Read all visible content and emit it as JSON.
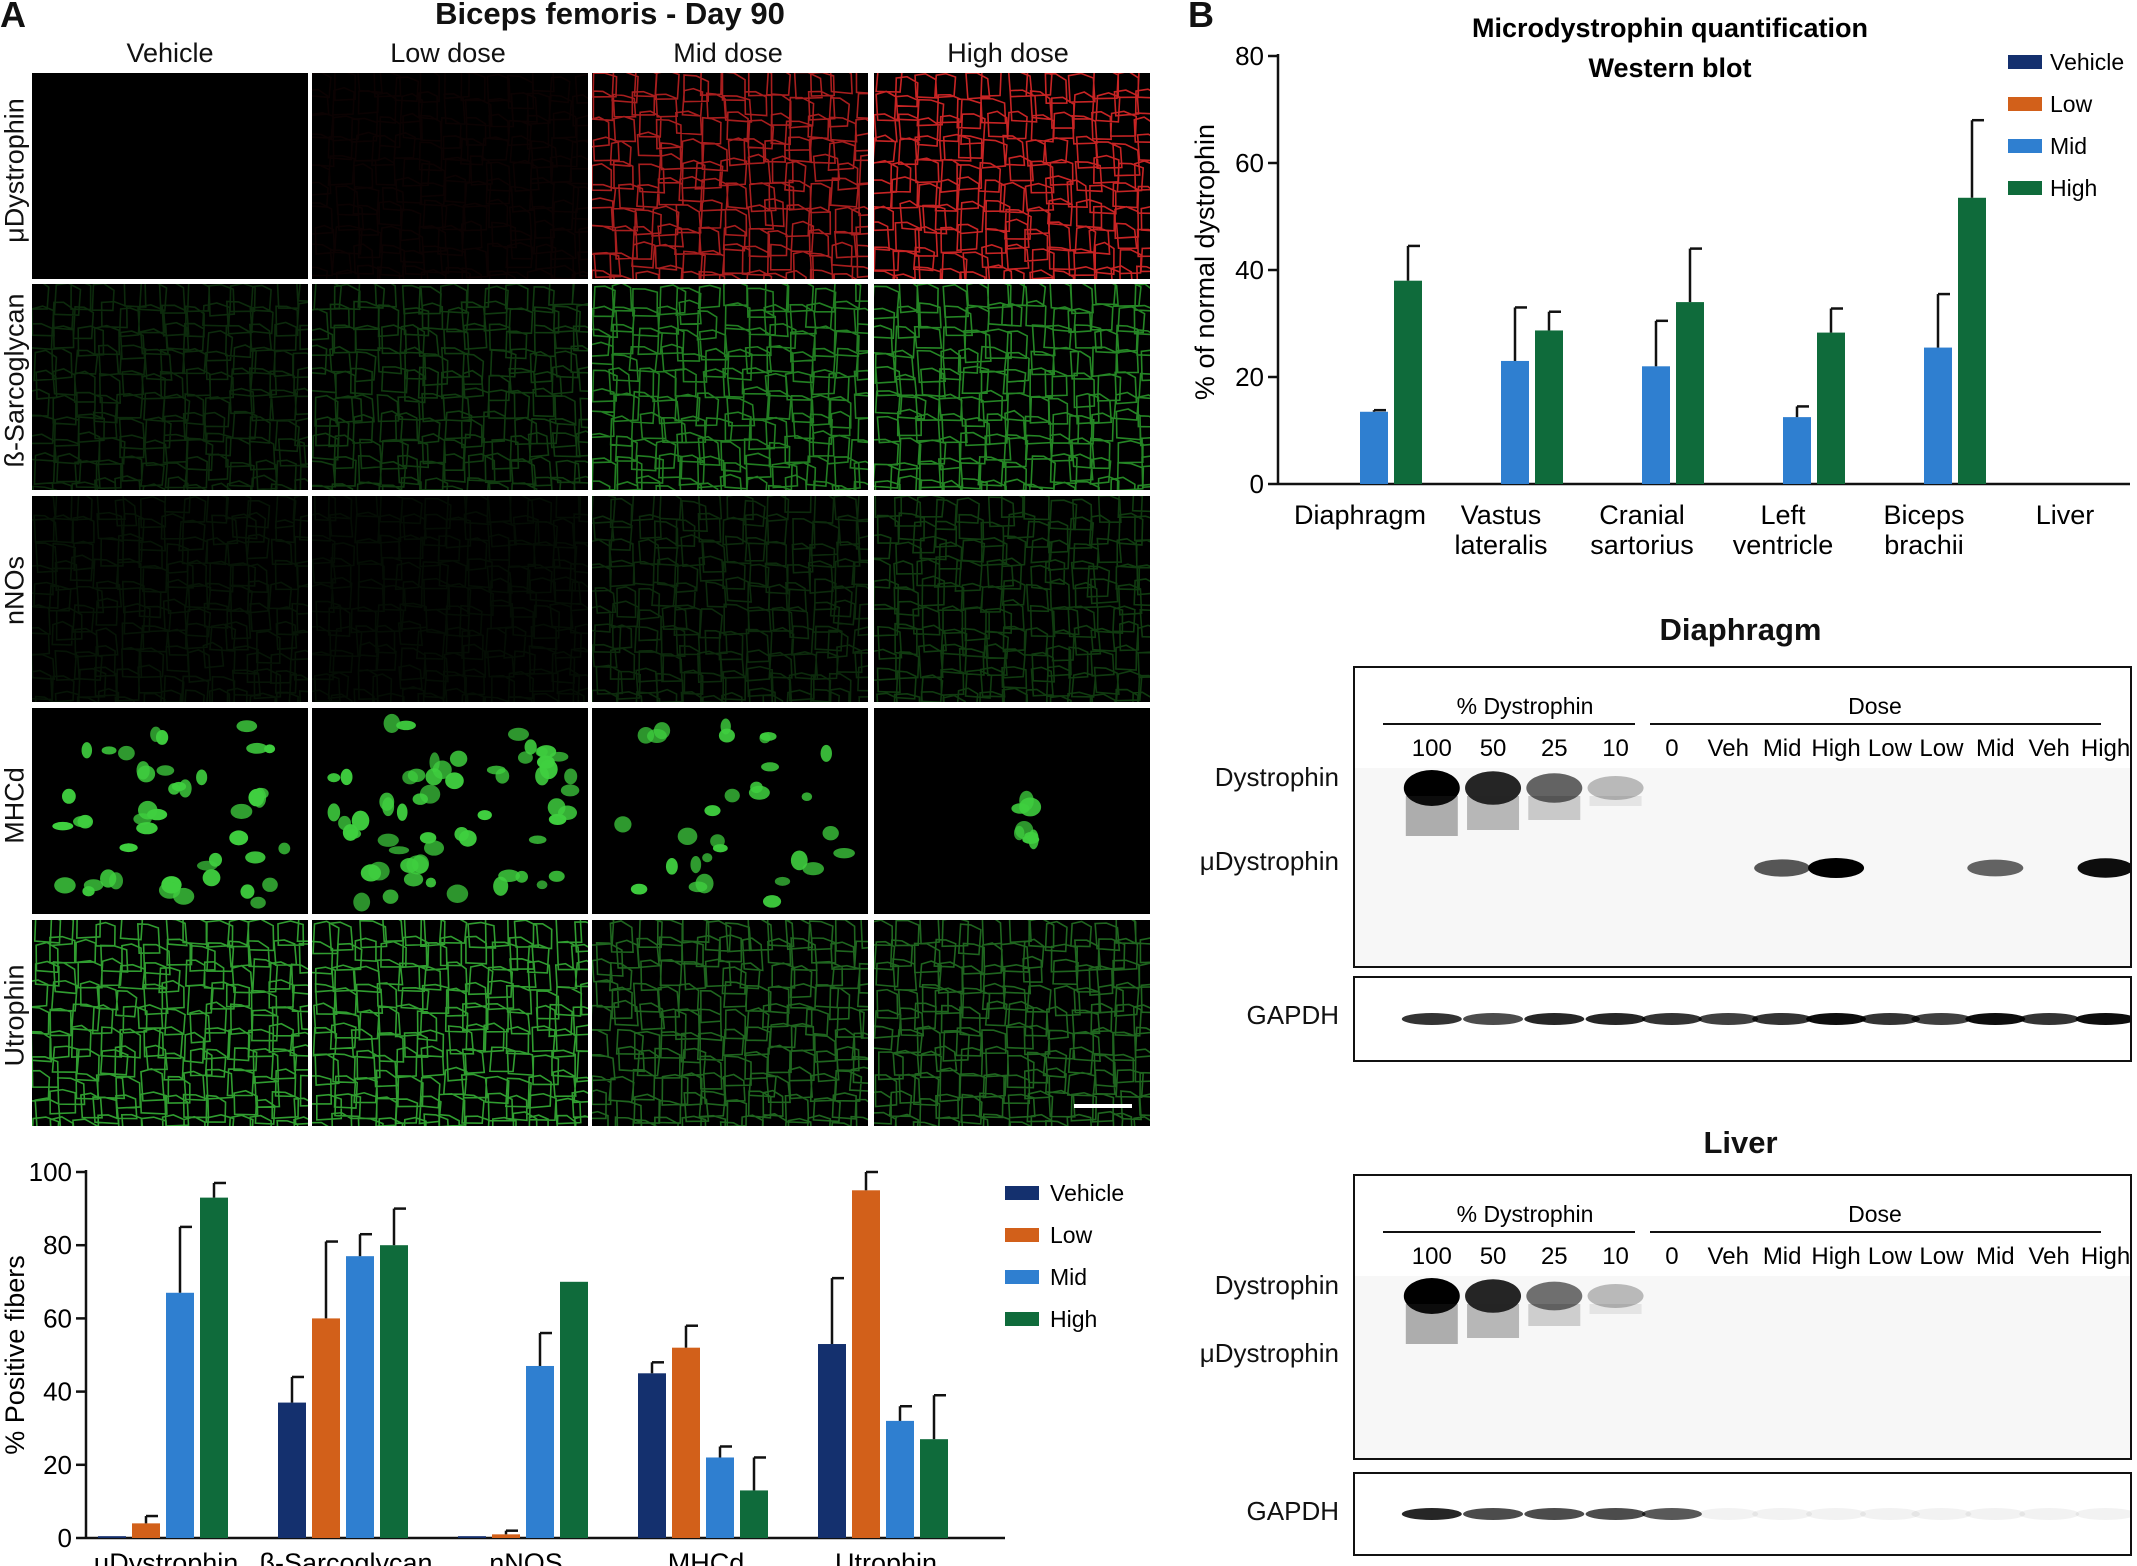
{
  "panel_a": {
    "letter": "A",
    "title": "Biceps femoris - Day 90",
    "columns": [
      "Vehicle",
      "Low dose",
      "Mid dose",
      "High dose"
    ],
    "rows": [
      "μDystrophin",
      "ß-Sarcoglycan",
      "nNOs",
      "MHCd",
      "Utrophin"
    ]
  },
  "panel_b": {
    "letter": "B"
  },
  "chart_data": [
    {
      "type": "bar",
      "title": "",
      "ylabel": "% Positive fibers",
      "ylim": [
        0,
        100
      ],
      "yticks": [
        0,
        20,
        40,
        60,
        80,
        100
      ],
      "categories": [
        "μDystrophin",
        "β-Sarcoglycan",
        "nNOS",
        "MHCd",
        "Utrophin"
      ],
      "series": [
        {
          "name": "Vehicle",
          "color": "#14306e",
          "values": [
            0.5,
            37,
            0.5,
            45,
            53
          ],
          "errors": [
            0,
            7,
            0,
            3,
            18
          ]
        },
        {
          "name": "Low",
          "color": "#d2601a",
          "values": [
            4,
            60,
            1,
            52,
            95
          ],
          "errors": [
            2,
            21,
            1,
            6,
            5
          ]
        },
        {
          "name": "Mid",
          "color": "#2f7fd0",
          "values": [
            67,
            77,
            47,
            22,
            32
          ],
          "errors": [
            18,
            6,
            9,
            3,
            4
          ]
        },
        {
          "name": "High",
          "color": "#0f6b3b",
          "values": [
            93,
            80,
            70,
            13,
            27
          ],
          "errors": [
            4,
            10,
            0,
            9,
            12
          ]
        }
      ],
      "legend_position": "right"
    },
    {
      "type": "bar",
      "title": "Microdystrophin quantification",
      "subtitle": "Western blot",
      "ylabel": "% of normal dystrophin",
      "ylim": [
        0,
        80
      ],
      "yticks": [
        0,
        20,
        40,
        60,
        80
      ],
      "categories": [
        "Diaphragm",
        "Vastus lateralis",
        "Cranial sartorius",
        "Left ventricle",
        "Biceps brachii",
        "Liver"
      ],
      "category_lines": [
        [
          "Diaphragm"
        ],
        [
          "Vastus",
          "lateralis"
        ],
        [
          "Cranial",
          "sartorius"
        ],
        [
          "Left",
          "ventricle"
        ],
        [
          "Biceps",
          "brachii"
        ],
        [
          "Liver"
        ]
      ],
      "series": [
        {
          "name": "Vehicle",
          "color": "#14306e",
          "values": [
            0,
            0,
            0,
            0,
            0,
            0
          ],
          "errors": [
            0,
            0,
            0,
            0,
            0,
            0
          ]
        },
        {
          "name": "Low",
          "color": "#d2601a",
          "values": [
            0,
            0,
            0,
            0,
            0,
            0
          ],
          "errors": [
            0,
            0,
            0,
            0,
            0,
            0
          ]
        },
        {
          "name": "Mid",
          "color": "#2f7fd0",
          "values": [
            13.5,
            23,
            22,
            12.5,
            25.5,
            0
          ],
          "errors": [
            0.3,
            10,
            8.5,
            2,
            10,
            0
          ]
        },
        {
          "name": "High",
          "color": "#0f6b3b",
          "values": [
            38,
            28.7,
            34,
            28.3,
            53.5,
            0
          ],
          "errors": [
            6.5,
            3.5,
            10,
            4.5,
            14.5,
            0
          ]
        }
      ],
      "legend_position": "top-right"
    }
  ],
  "blots": [
    {
      "title": "Diaphragm",
      "group_left": "% Dystrophin",
      "group_right": "Dose",
      "lanes": [
        "100",
        "50",
        "25",
        "10",
        "0",
        "Veh",
        "Mid",
        "High",
        "Low",
        "Low",
        "Mid",
        "Veh",
        "High"
      ],
      "band_labels": [
        "Dystrophin",
        "μDystrophin",
        "GAPDH"
      ]
    },
    {
      "title": "Liver",
      "group_left": "% Dystrophin",
      "group_right": "Dose",
      "lanes": [
        "100",
        "50",
        "25",
        "10",
        "0",
        "Veh",
        "Mid",
        "High",
        "Low",
        "Low",
        "Mid",
        "Veh",
        "High"
      ],
      "band_labels": [
        "Dystrophin",
        "μDystrophin",
        "GAPDH"
      ]
    }
  ]
}
